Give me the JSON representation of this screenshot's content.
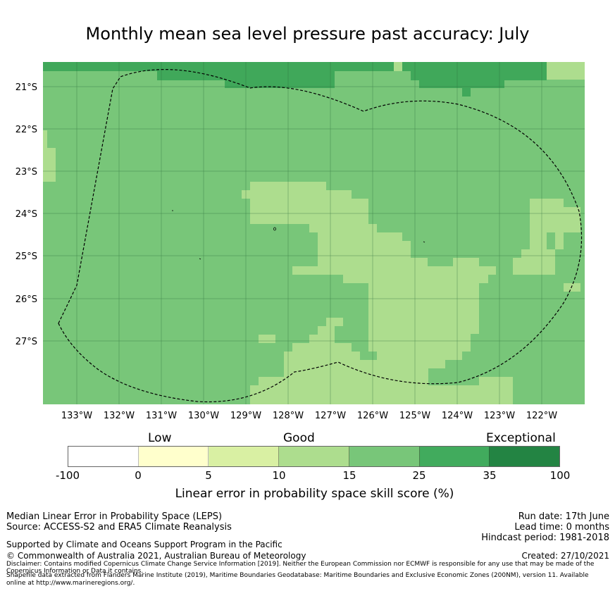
{
  "title": "Monthly mean sea level pressure past accuracy: July",
  "map": {
    "lat_labels": [
      "21°S",
      "22°S",
      "23°S",
      "24°S",
      "25°S",
      "26°S",
      "27°S"
    ],
    "lon_labels": [
      "133°W",
      "132°W",
      "131°W",
      "130°W",
      "129°W",
      "128°W",
      "127°W",
      "126°W",
      "125°W",
      "124°W",
      "123°W",
      "122°W"
    ],
    "extent": {
      "lon": [
        -133.8,
        -121.0
      ],
      "lat": [
        -28.5,
        -20.4
      ]
    },
    "colors": {
      "very_good": "#40a85a",
      "good": "#78c679",
      "fair": "#addd8e",
      "poor": "#d9f0a3",
      "ocean_border": "#000000"
    }
  },
  "colorbar": {
    "category_labels": [
      "Low",
      "Good",
      "Exceptional"
    ],
    "tick_labels": [
      "-100",
      "0",
      "5",
      "10",
      "15",
      "25",
      "35",
      "100"
    ],
    "colors": [
      "#ffffff",
      "#ffffcc",
      "#d9f0a3",
      "#addd8e",
      "#78c679",
      "#41ab5d",
      "#238443"
    ],
    "label": "Linear error in probability space skill score (%)"
  },
  "footer": {
    "left1": "Median Linear Error in Probability Space (LEPS)",
    "left2": "Source: ACCESS-S2 and ERA5 Climate Reanalysis",
    "support": "Supported by Climate and Oceans Support Program in the Pacific",
    "copyright": "© Commonwealth of Australia 2021, Australian Bureau of Meteorology",
    "disclaimer1": "Disclaimer: Contains modified Copernicus Climate Change Service Information [2019]. Neither the European Commission nor ECMWF is responsible for any use that may be made of the",
    "disclaimer2": "Copernicus Information or Data it contains.",
    "shapefile1": "Shapefile data extracted from Flanders Marine Institute (2019), Maritime Boundaries Geodatabase: Maritime Boundaries and Exclusive Economic Zones (200NM), version 11. Available",
    "shapefile2": "online at http://www.marineregions.org/.",
    "run_date": "Run date: 17th June",
    "lead_time": "Lead time: 0 months",
    "hindcast": "Hindcast period: 1981-2018",
    "created": "Created: 27/10/2021"
  }
}
